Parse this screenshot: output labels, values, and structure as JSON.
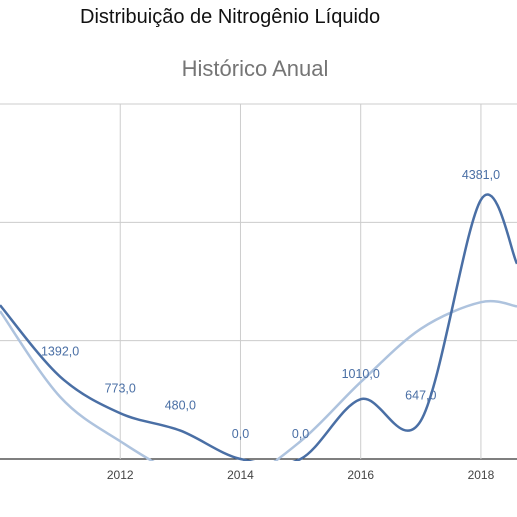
{
  "page_title": "Distribuição de Nitrogênio Líquido",
  "chart_data": {
    "type": "line",
    "subtitle": "Histórico Anual",
    "x_ticks": [
      2012,
      2014,
      2016,
      2018
    ],
    "xlim": [
      2010,
      2018.6
    ],
    "ylim": [
      0,
      6000
    ],
    "grid": true,
    "series": [
      {
        "color": "#4a6fa5",
        "smooth": true,
        "points": [
          {
            "x": 2010,
            "y": 2600
          },
          {
            "x": 2011,
            "y": 1392,
            "label": "1392,0"
          },
          {
            "x": 2012,
            "y": 773,
            "label": "773,0"
          },
          {
            "x": 2013,
            "y": 480,
            "label": "480,0"
          },
          {
            "x": 2014,
            "y": 0,
            "label": "0,0"
          },
          {
            "x": 2015,
            "y": 0,
            "label": "0,0"
          },
          {
            "x": 2016,
            "y": 1010,
            "label": "1010,0"
          },
          {
            "x": 2017,
            "y": 647,
            "label": "647,0"
          },
          {
            "x": 2018,
            "y": 4381,
            "label": "4381,0"
          },
          {
            "x": 2018.6,
            "y": 3300
          }
        ]
      },
      {
        "color": "#aec3de",
        "smooth": true,
        "trend": true,
        "points": [
          {
            "x": 2010,
            "y": 2500
          },
          {
            "x": 2011,
            "y": 1050
          },
          {
            "x": 2012,
            "y": 300
          },
          {
            "x": 2013,
            "y": -250
          },
          {
            "x": 2014,
            "y": -350
          },
          {
            "x": 2015,
            "y": 300
          },
          {
            "x": 2016,
            "y": 1300
          },
          {
            "x": 2017,
            "y": 2200
          },
          {
            "x": 2018,
            "y": 2650
          },
          {
            "x": 2018.6,
            "y": 2580
          }
        ]
      }
    ]
  }
}
